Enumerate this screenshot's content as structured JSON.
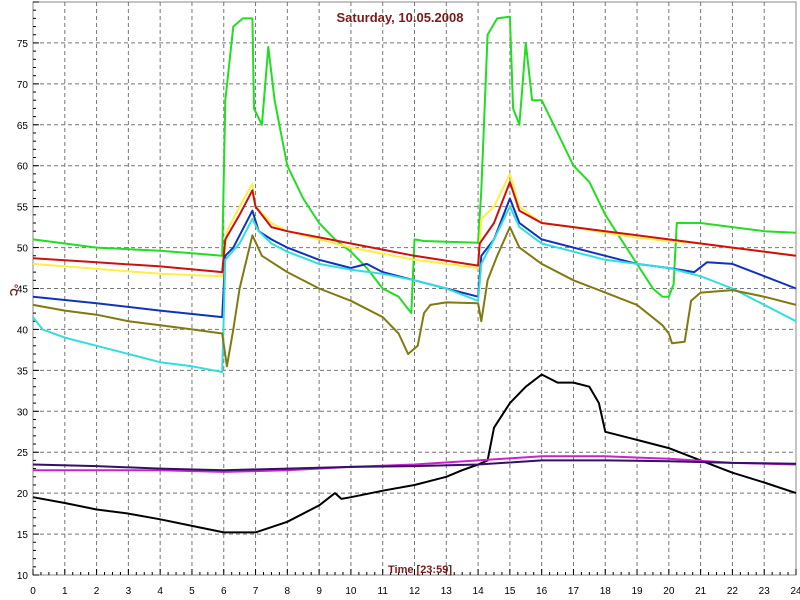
{
  "chart_data": {
    "type": "line",
    "title": "Saturday, 10.05.2008",
    "xlabel": "Time [23:59]",
    "ylabel": "°C",
    "xlim": [
      0,
      24
    ],
    "ylim": [
      10,
      80
    ],
    "grid": true,
    "x_ticks": [
      0,
      1,
      2,
      3,
      4,
      5,
      6,
      7,
      8,
      9,
      10,
      11,
      12,
      13,
      14,
      15,
      16,
      17,
      18,
      19,
      20,
      21,
      22,
      23,
      24
    ],
    "y_ticks": [
      10,
      15,
      20,
      25,
      30,
      35,
      40,
      45,
      50,
      55,
      60,
      65,
      70,
      75
    ],
    "series": [
      {
        "color": "#22dd22",
        "points": [
          [
            0,
            51
          ],
          [
            1,
            50.5
          ],
          [
            2,
            50
          ],
          [
            3,
            49.8
          ],
          [
            4,
            49.6
          ],
          [
            5,
            49.3
          ],
          [
            5.95,
            49
          ],
          [
            6.05,
            68
          ],
          [
            6.3,
            77
          ],
          [
            6.6,
            78
          ],
          [
            6.9,
            78
          ],
          [
            6.95,
            67
          ],
          [
            7.2,
            65
          ],
          [
            7.4,
            74.5
          ],
          [
            7.6,
            68
          ],
          [
            8,
            60
          ],
          [
            8.5,
            56
          ],
          [
            9,
            53
          ],
          [
            9.5,
            51
          ],
          [
            10,
            49.5
          ],
          [
            10.5,
            47.5
          ],
          [
            11,
            45
          ],
          [
            11.5,
            44
          ],
          [
            11.9,
            42
          ],
          [
            12.0,
            51
          ],
          [
            12.3,
            50.8
          ],
          [
            13,
            50.7
          ],
          [
            14,
            50.6
          ],
          [
            14.1,
            57
          ],
          [
            14.3,
            76
          ],
          [
            14.6,
            78
          ],
          [
            15.0,
            78.2
          ],
          [
            15.1,
            67
          ],
          [
            15.3,
            65
          ],
          [
            15.5,
            75
          ],
          [
            15.7,
            68
          ],
          [
            16,
            68
          ],
          [
            16.5,
            64
          ],
          [
            17,
            60
          ],
          [
            17.5,
            58
          ],
          [
            18,
            54
          ],
          [
            18.5,
            51
          ],
          [
            19,
            48
          ],
          [
            19.5,
            45
          ],
          [
            19.8,
            44
          ],
          [
            20,
            44
          ],
          [
            20.15,
            45.5
          ],
          [
            20.25,
            53
          ],
          [
            21,
            53
          ],
          [
            22,
            52.5
          ],
          [
            23,
            52
          ],
          [
            24,
            51.8
          ]
        ]
      },
      {
        "color": "#ffee44",
        "points": [
          [
            0,
            48
          ],
          [
            2,
            47.4
          ],
          [
            4,
            46.8
          ],
          [
            5.95,
            46.5
          ],
          [
            6.1,
            52
          ],
          [
            6.5,
            55
          ],
          [
            6.9,
            57.8
          ],
          [
            7,
            55
          ],
          [
            7.5,
            53
          ],
          [
            8,
            52
          ],
          [
            10,
            50
          ],
          [
            12,
            48.5
          ],
          [
            14,
            47.5
          ],
          [
            14.1,
            53.5
          ],
          [
            14.5,
            55
          ],
          [
            15,
            59
          ],
          [
            15.3,
            55
          ],
          [
            16,
            53
          ],
          [
            17,
            52.5
          ],
          [
            18,
            51.8
          ],
          [
            19,
            51.2
          ],
          [
            20,
            50.8
          ],
          [
            21,
            50.5
          ],
          [
            22,
            50
          ],
          [
            24,
            49
          ]
        ]
      },
      {
        "color": "#cc1111",
        "points": [
          [
            0,
            48.7
          ],
          [
            2,
            48.2
          ],
          [
            4,
            47.7
          ],
          [
            5.95,
            47
          ],
          [
            6.05,
            51
          ],
          [
            6.5,
            54
          ],
          [
            6.9,
            57
          ],
          [
            7,
            55
          ],
          [
            7.5,
            52.5
          ],
          [
            8,
            52
          ],
          [
            10,
            50.5
          ],
          [
            12,
            49
          ],
          [
            14,
            47.8
          ],
          [
            14.05,
            50.5
          ],
          [
            14.5,
            53
          ],
          [
            15,
            58
          ],
          [
            15.3,
            54.5
          ],
          [
            16,
            53
          ],
          [
            18,
            52
          ],
          [
            20,
            51
          ],
          [
            22,
            50
          ],
          [
            24,
            49
          ]
        ]
      },
      {
        "color": "#1133bb",
        "points": [
          [
            0,
            44
          ],
          [
            2,
            43.2
          ],
          [
            4,
            42.3
          ],
          [
            5.95,
            41.5
          ],
          [
            6.05,
            49
          ],
          [
            6.3,
            50
          ],
          [
            6.9,
            54.5
          ],
          [
            7.1,
            52
          ],
          [
            7.5,
            51
          ],
          [
            8,
            50
          ],
          [
            9,
            48.5
          ],
          [
            9.5,
            48
          ],
          [
            10,
            47.5
          ],
          [
            10.5,
            48
          ],
          [
            11,
            47
          ],
          [
            12,
            46
          ],
          [
            13,
            45
          ],
          [
            14,
            44
          ],
          [
            14.1,
            49
          ],
          [
            14.5,
            51
          ],
          [
            15,
            56
          ],
          [
            15.3,
            53
          ],
          [
            16,
            51
          ],
          [
            18,
            49
          ],
          [
            19,
            48
          ],
          [
            20,
            47.5
          ],
          [
            20.8,
            47
          ],
          [
            21.2,
            48.2
          ],
          [
            22,
            48
          ],
          [
            23,
            46.5
          ],
          [
            24,
            45
          ]
        ]
      },
      {
        "color": "#33dddd",
        "points": [
          [
            0,
            41.5
          ],
          [
            0.3,
            40
          ],
          [
            1,
            39
          ],
          [
            2,
            38
          ],
          [
            3,
            37
          ],
          [
            4,
            36
          ],
          [
            5,
            35.5
          ],
          [
            5.95,
            34.8
          ],
          [
            6.05,
            48.5
          ],
          [
            6.5,
            50.5
          ],
          [
            6.9,
            53.5
          ],
          [
            7.1,
            52
          ],
          [
            7.5,
            50.5
          ],
          [
            8,
            49.5
          ],
          [
            9,
            48
          ],
          [
            10,
            47.3
          ],
          [
            11,
            46.8
          ],
          [
            12,
            46
          ],
          [
            13,
            45
          ],
          [
            14,
            43.5
          ],
          [
            14.1,
            48
          ],
          [
            14.5,
            51
          ],
          [
            15,
            55
          ],
          [
            15.3,
            52.5
          ],
          [
            16,
            50.5
          ],
          [
            17,
            49.5
          ],
          [
            18,
            48.5
          ],
          [
            19,
            48
          ],
          [
            20,
            47.5
          ],
          [
            21,
            46.5
          ],
          [
            22,
            45
          ],
          [
            23,
            43
          ],
          [
            24,
            41
          ]
        ]
      },
      {
        "color": "#807a10",
        "points": [
          [
            0,
            43
          ],
          [
            1,
            42.3
          ],
          [
            2,
            41.8
          ],
          [
            3,
            41
          ],
          [
            4,
            40.5
          ],
          [
            5,
            40
          ],
          [
            5.95,
            39.5
          ],
          [
            6.1,
            35.5
          ],
          [
            6.3,
            40
          ],
          [
            6.5,
            45
          ],
          [
            6.9,
            51.5
          ],
          [
            7.2,
            49
          ],
          [
            8,
            47
          ],
          [
            9,
            45
          ],
          [
            10,
            43.5
          ],
          [
            11,
            41.5
          ],
          [
            11.5,
            39.5
          ],
          [
            11.8,
            37
          ],
          [
            12.1,
            38
          ],
          [
            12.3,
            42
          ],
          [
            12.5,
            43
          ],
          [
            13,
            43.3
          ],
          [
            14,
            43.2
          ],
          [
            14.1,
            41
          ],
          [
            14.3,
            46
          ],
          [
            14.6,
            49
          ],
          [
            15,
            52.5
          ],
          [
            15.3,
            50
          ],
          [
            16,
            48
          ],
          [
            17,
            46
          ],
          [
            18,
            44.5
          ],
          [
            19,
            43
          ],
          [
            19.8,
            40.5
          ],
          [
            20,
            39.5
          ],
          [
            20.1,
            38.3
          ],
          [
            20.5,
            38.5
          ],
          [
            20.7,
            43.5
          ],
          [
            21,
            44.5
          ],
          [
            22,
            44.8
          ],
          [
            23,
            44
          ],
          [
            24,
            43
          ]
        ]
      },
      {
        "color": "#000000",
        "points": [
          [
            0,
            19.5
          ],
          [
            1,
            18.8
          ],
          [
            2,
            18
          ],
          [
            3,
            17.5
          ],
          [
            4,
            16.8
          ],
          [
            5,
            16
          ],
          [
            6,
            15.2
          ],
          [
            7,
            15.2
          ],
          [
            8,
            16.5
          ],
          [
            9,
            18.5
          ],
          [
            9.5,
            20
          ],
          [
            9.7,
            19.3
          ],
          [
            10,
            19.5
          ],
          [
            11,
            20.3
          ],
          [
            12,
            21
          ],
          [
            13,
            22
          ],
          [
            13.5,
            22.8
          ],
          [
            14,
            23.5
          ],
          [
            14.3,
            24
          ],
          [
            14.5,
            28
          ],
          [
            15,
            31
          ],
          [
            15.5,
            33
          ],
          [
            16,
            34.5
          ],
          [
            16.5,
            33.5
          ],
          [
            17,
            33.5
          ],
          [
            17.5,
            33
          ],
          [
            17.8,
            31
          ],
          [
            18,
            27.5
          ],
          [
            18.5,
            27
          ],
          [
            19,
            26.5
          ],
          [
            20,
            25.5
          ],
          [
            21,
            24
          ],
          [
            22,
            22.5
          ],
          [
            23,
            21.3
          ],
          [
            24,
            20
          ]
        ]
      },
      {
        "color": "#cc22cc",
        "points": [
          [
            0,
            22.8
          ],
          [
            2,
            22.8
          ],
          [
            4,
            22.8
          ],
          [
            6,
            22.6
          ],
          [
            8,
            22.8
          ],
          [
            10,
            23.2
          ],
          [
            12,
            23.5
          ],
          [
            14,
            24
          ],
          [
            16,
            24.5
          ],
          [
            18,
            24.5
          ],
          [
            20,
            24.2
          ],
          [
            22,
            23.7
          ],
          [
            24,
            23.5
          ]
        ]
      },
      {
        "color": "#331166",
        "points": [
          [
            0,
            23.5
          ],
          [
            2,
            23.3
          ],
          [
            4,
            23
          ],
          [
            6,
            22.8
          ],
          [
            8,
            23
          ],
          [
            10,
            23.2
          ],
          [
            12,
            23.3
          ],
          [
            14,
            23.5
          ],
          [
            16,
            24
          ],
          [
            18,
            24
          ],
          [
            20,
            23.9
          ],
          [
            22,
            23.7
          ],
          [
            24,
            23.6
          ]
        ]
      }
    ]
  }
}
